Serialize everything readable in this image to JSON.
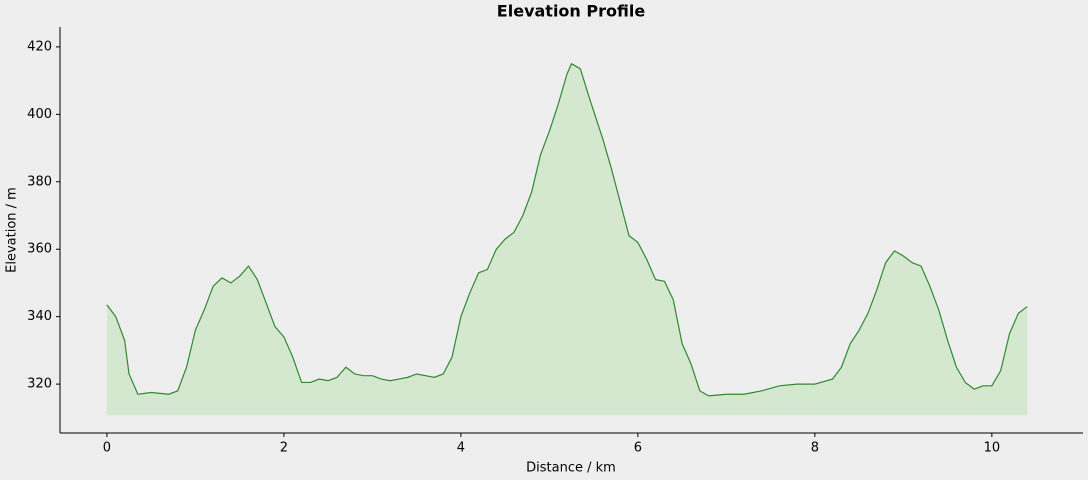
{
  "chart_data": {
    "type": "area",
    "title": "Elevation Profile",
    "x_label": "Distance / km",
    "y_label": "Elevation / m",
    "x": [
      0,
      0.1,
      0.2,
      0.25,
      0.35,
      0.5,
      0.7,
      0.8,
      0.9,
      1.0,
      1.1,
      1.2,
      1.3,
      1.4,
      1.5,
      1.6,
      1.7,
      1.8,
      1.9,
      2.0,
      2.1,
      2.2,
      2.3,
      2.4,
      2.5,
      2.6,
      2.7,
      2.8,
      2.9,
      3.0,
      3.1,
      3.2,
      3.3,
      3.4,
      3.5,
      3.6,
      3.7,
      3.8,
      3.9,
      4.0,
      4.1,
      4.2,
      4.3,
      4.4,
      4.5,
      4.6,
      4.7,
      4.8,
      4.9,
      5.0,
      5.1,
      5.2,
      5.25,
      5.35,
      5.45,
      5.6,
      5.7,
      5.8,
      5.9,
      6.0,
      6.1,
      6.2,
      6.3,
      6.4,
      6.5,
      6.6,
      6.7,
      6.8,
      7.0,
      7.2,
      7.4,
      7.6,
      7.8,
      8.0,
      8.2,
      8.3,
      8.4,
      8.5,
      8.6,
      8.7,
      8.8,
      8.9,
      9.0,
      9.1,
      9.2,
      9.3,
      9.4,
      9.5,
      9.6,
      9.7,
      9.8,
      9.9,
      10.0,
      10.1,
      10.2,
      10.3,
      10.4
    ],
    "values": [
      343.5,
      340,
      333,
      323,
      317,
      317.5,
      317,
      318,
      325,
      336,
      342,
      349,
      351.5,
      350,
      352,
      355,
      351,
      344,
      337,
      334,
      328,
      320.5,
      320.5,
      321.5,
      321,
      322,
      325,
      323,
      322.5,
      322.5,
      321.5,
      321,
      321.5,
      322,
      323,
      322.5,
      322,
      323,
      328,
      340,
      347,
      353,
      354,
      360,
      363,
      365,
      370,
      377,
      388,
      395,
      403,
      412,
      415,
      413.5,
      405,
      393,
      384,
      374,
      364,
      362,
      357,
      351,
      350.5,
      345,
      332,
      326,
      318,
      316.5,
      317,
      317,
      318,
      319.5,
      320,
      320,
      321.5,
      325,
      332,
      336,
      341,
      348,
      356,
      359.5,
      358,
      356,
      355,
      349,
      342,
      333,
      325,
      320.5,
      318.5,
      319.5,
      319.5,
      324,
      335,
      341,
      343
    ],
    "fill_to": 310.8,
    "color": "#2e8b2e",
    "fill_color": "#d4e8cf",
    "xlim": [
      -0.53,
      11.03
    ],
    "xticks": [
      0,
      2,
      4,
      6,
      8,
      10
    ],
    "ylim": [
      305.5,
      425.9
    ],
    "yticks": [
      320,
      340,
      360,
      380,
      400,
      420
    ],
    "grid": false
  }
}
